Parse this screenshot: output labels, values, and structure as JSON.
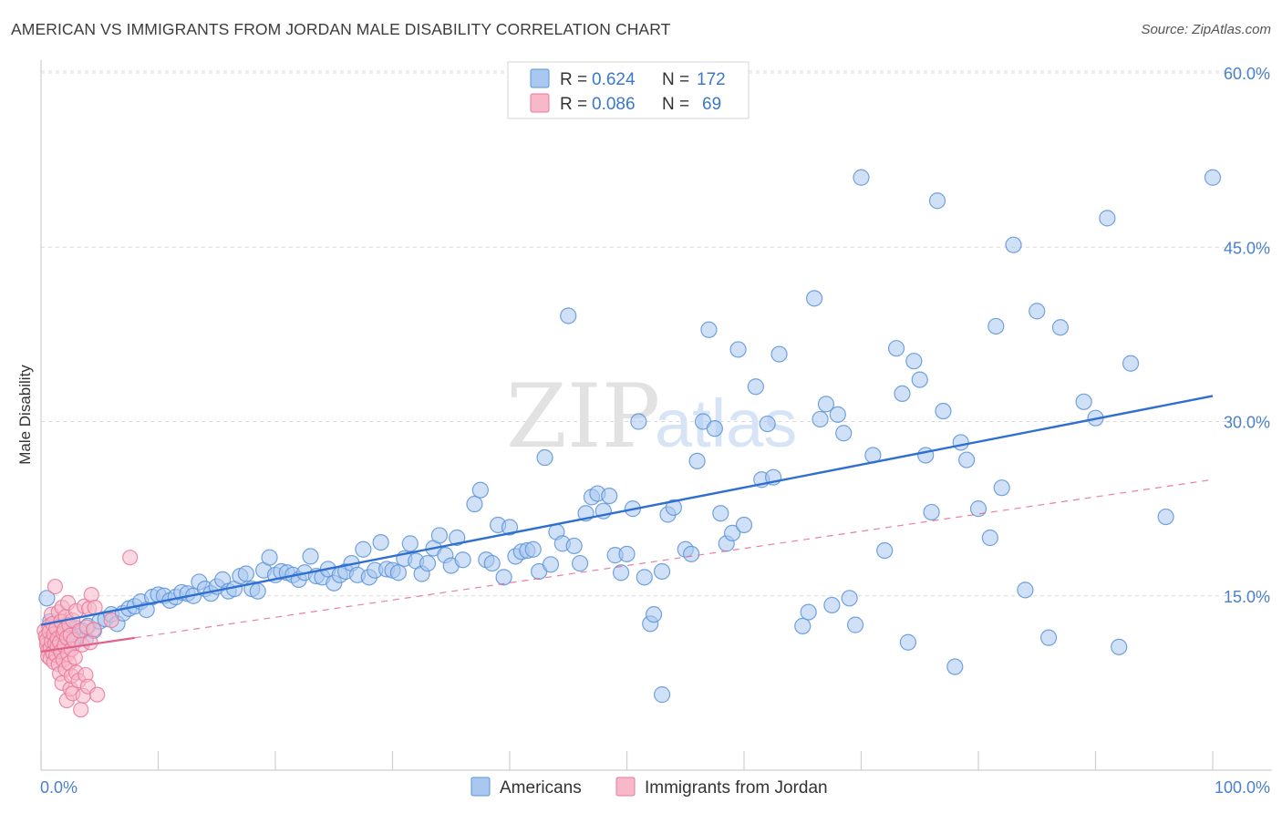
{
  "header": {
    "title": "AMERICAN VS IMMIGRANTS FROM JORDAN MALE DISABILITY CORRELATION CHART",
    "source": "Source: ZipAtlas.com"
  },
  "watermark": {
    "zip": "ZIP",
    "atlas": "atlas"
  },
  "legend": {
    "r_label": "R =",
    "n_label": "N =",
    "entries": [
      {
        "r": "0.624",
        "n": "172",
        "color": "#a9c8f0"
      },
      {
        "r": "0.086",
        "n": "69",
        "color": "#f7b8c9"
      }
    ]
  },
  "bottom_legend": [
    {
      "label": "Americans",
      "color": "#a9c8f0"
    },
    {
      "label": "Immigrants from Jordan",
      "color": "#f7b8c9"
    }
  ],
  "colors": {
    "americans_fill": "#a9c8f0",
    "americans_stroke": "#5b93d8",
    "americans_line": "#2e6fd0",
    "jordan_fill": "#f7b8c9",
    "jordan_stroke": "#e8799a",
    "jordan_line": "#e0628a",
    "grid": "#dcdcdc",
    "tick_text": "#4a80cc"
  },
  "chart_data": {
    "type": "scatter",
    "title": "AMERICAN VS IMMIGRANTS FROM JORDAN MALE DISABILITY CORRELATION CHART",
    "xlabel": "",
    "ylabel": "Male Disability",
    "xlim": [
      0,
      100
    ],
    "ylim": [
      0,
      60
    ],
    "y_ticks": [
      {
        "value": 15,
        "label": "15.0%"
      },
      {
        "value": 30,
        "label": "30.0%"
      },
      {
        "value": 45,
        "label": "45.0%"
      },
      {
        "value": 60,
        "label": "60.0%"
      }
    ],
    "x_ticks": [
      {
        "value": 0,
        "label": "0.0%"
      },
      {
        "value": 100,
        "label": "100.0%"
      }
    ],
    "grid": true,
    "series": [
      {
        "name": "Americans",
        "trend": {
          "x": [
            0,
            100
          ],
          "y": [
            12.5,
            32.2
          ],
          "style": "solid"
        },
        "points": [
          [
            0.5,
            14.8
          ],
          [
            0.8,
            12.8
          ],
          [
            1.0,
            11.5
          ],
          [
            1.2,
            11.0
          ],
          [
            1.5,
            12.0
          ],
          [
            1.8,
            11.7
          ],
          [
            2.0,
            11.2
          ],
          [
            2.2,
            12.5
          ],
          [
            2.5,
            11.8
          ],
          [
            2.8,
            11.0
          ],
          [
            3.0,
            12.2
          ],
          [
            3.2,
            11.5
          ],
          [
            3.5,
            12.0
          ],
          [
            3.8,
            11.3
          ],
          [
            4.0,
            12.4
          ],
          [
            4.5,
            12.0
          ],
          [
            5.0,
            12.8
          ],
          [
            5.5,
            13.0
          ],
          [
            6.0,
            13.4
          ],
          [
            6.5,
            12.6
          ],
          [
            7.0,
            13.5
          ],
          [
            7.5,
            13.9
          ],
          [
            8.0,
            14.1
          ],
          [
            8.5,
            14.5
          ],
          [
            9.0,
            13.8
          ],
          [
            9.5,
            14.9
          ],
          [
            10.0,
            15.1
          ],
          [
            10.5,
            15.0
          ],
          [
            11.0,
            14.6
          ],
          [
            11.5,
            14.9
          ],
          [
            12.0,
            15.3
          ],
          [
            12.5,
            15.2
          ],
          [
            13.0,
            15.0
          ],
          [
            13.5,
            16.2
          ],
          [
            14.0,
            15.6
          ],
          [
            14.5,
            15.2
          ],
          [
            15.0,
            15.8
          ],
          [
            15.5,
            16.4
          ],
          [
            16.0,
            15.4
          ],
          [
            16.5,
            15.6
          ],
          [
            17.0,
            16.7
          ],
          [
            17.5,
            16.9
          ],
          [
            18.0,
            15.6
          ],
          [
            18.5,
            15.4
          ],
          [
            19.0,
            17.2
          ],
          [
            19.5,
            18.3
          ],
          [
            20.0,
            16.8
          ],
          [
            20.5,
            17.1
          ],
          [
            21.0,
            17.0
          ],
          [
            21.5,
            16.8
          ],
          [
            22.0,
            16.4
          ],
          [
            22.5,
            17.0
          ],
          [
            23.0,
            18.4
          ],
          [
            23.5,
            16.7
          ],
          [
            24.0,
            16.6
          ],
          [
            24.5,
            17.3
          ],
          [
            25.0,
            16.1
          ],
          [
            25.5,
            16.8
          ],
          [
            26.0,
            17.1
          ],
          [
            26.5,
            17.8
          ],
          [
            27.0,
            16.8
          ],
          [
            27.5,
            19.0
          ],
          [
            28.0,
            16.6
          ],
          [
            28.5,
            17.2
          ],
          [
            29.0,
            19.6
          ],
          [
            29.5,
            17.3
          ],
          [
            30.0,
            17.2
          ],
          [
            30.5,
            17.0
          ],
          [
            31.0,
            18.2
          ],
          [
            31.5,
            19.5
          ],
          [
            32.0,
            18.0
          ],
          [
            32.5,
            16.9
          ],
          [
            33.0,
            17.8
          ],
          [
            33.5,
            19.1
          ],
          [
            34.0,
            20.2
          ],
          [
            34.5,
            18.5
          ],
          [
            35.0,
            17.6
          ],
          [
            35.5,
            20.0
          ],
          [
            36.0,
            18.1
          ],
          [
            37.0,
            22.9
          ],
          [
            37.5,
            24.1
          ],
          [
            38.0,
            18.1
          ],
          [
            38.5,
            17.8
          ],
          [
            39.0,
            21.1
          ],
          [
            39.5,
            16.6
          ],
          [
            40.0,
            20.9
          ],
          [
            40.5,
            18.4
          ],
          [
            41.0,
            18.8
          ],
          [
            41.5,
            18.9
          ],
          [
            42.0,
            19.0
          ],
          [
            42.5,
            17.1
          ],
          [
            43.0,
            26.9
          ],
          [
            43.5,
            17.7
          ],
          [
            44.0,
            20.5
          ],
          [
            44.5,
            19.5
          ],
          [
            45.0,
            39.1
          ],
          [
            45.5,
            19.3
          ],
          [
            46.0,
            17.8
          ],
          [
            46.5,
            22.1
          ],
          [
            47.0,
            23.5
          ],
          [
            47.5,
            23.8
          ],
          [
            48.0,
            22.3
          ],
          [
            48.5,
            23.6
          ],
          [
            49.0,
            18.5
          ],
          [
            49.5,
            17.0
          ],
          [
            50.0,
            18.6
          ],
          [
            50.5,
            22.5
          ],
          [
            51.0,
            30.0
          ],
          [
            51.5,
            16.6
          ],
          [
            52.0,
            12.6
          ],
          [
            52.3,
            13.4
          ],
          [
            53.0,
            17.1
          ],
          [
            53.5,
            22.0
          ],
          [
            54.0,
            22.6
          ],
          [
            55.0,
            19.0
          ],
          [
            55.5,
            18.6
          ],
          [
            56.0,
            26.6
          ],
          [
            56.5,
            30.0
          ],
          [
            57.0,
            37.9
          ],
          [
            57.5,
            29.4
          ],
          [
            58.0,
            22.1
          ],
          [
            58.5,
            19.5
          ],
          [
            59.0,
            20.4
          ],
          [
            59.5,
            36.2
          ],
          [
            60.0,
            21.1
          ],
          [
            61.0,
            33.0
          ],
          [
            61.5,
            25.0
          ],
          [
            62.0,
            29.8
          ],
          [
            62.5,
            25.2
          ],
          [
            63.0,
            35.8
          ],
          [
            65.0,
            12.4
          ],
          [
            65.5,
            13.6
          ],
          [
            66.0,
            40.6
          ],
          [
            66.5,
            30.2
          ],
          [
            67.0,
            31.5
          ],
          [
            67.5,
            14.2
          ],
          [
            68.0,
            30.6
          ],
          [
            68.5,
            29.0
          ],
          [
            69.0,
            14.8
          ],
          [
            69.5,
            12.5
          ],
          [
            70.0,
            51.0
          ],
          [
            71.0,
            27.1
          ],
          [
            72.0,
            18.9
          ],
          [
            73.0,
            36.3
          ],
          [
            73.5,
            32.4
          ],
          [
            74.0,
            11.0
          ],
          [
            74.5,
            35.2
          ],
          [
            75.0,
            33.6
          ],
          [
            75.5,
            27.1
          ],
          [
            76.0,
            22.2
          ],
          [
            76.5,
            49.0
          ],
          [
            77.0,
            30.9
          ],
          [
            78.0,
            8.9
          ],
          [
            78.5,
            28.2
          ],
          [
            79.0,
            26.7
          ],
          [
            80.0,
            22.5
          ],
          [
            81.0,
            20.0
          ],
          [
            81.5,
            38.2
          ],
          [
            82.0,
            24.3
          ],
          [
            83.0,
            45.2
          ],
          [
            84.0,
            15.5
          ],
          [
            85.0,
            39.5
          ],
          [
            86.0,
            11.4
          ],
          [
            87.0,
            38.1
          ],
          [
            89.0,
            31.7
          ],
          [
            90.0,
            30.3
          ],
          [
            91.0,
            47.5
          ],
          [
            92.0,
            10.6
          ],
          [
            93.0,
            35.0
          ],
          [
            96.0,
            21.8
          ],
          [
            100.0,
            51.0
          ],
          [
            53.0,
            6.5
          ]
        ]
      },
      {
        "name": "Immigrants from Jordan",
        "trend": {
          "x": [
            0,
            100
          ],
          "y": [
            10.2,
            25.0
          ],
          "style": "dashed"
        },
        "points": [
          [
            0.3,
            12.0
          ],
          [
            0.4,
            11.5
          ],
          [
            0.5,
            10.8
          ],
          [
            0.5,
            11.2
          ],
          [
            0.6,
            10.3
          ],
          [
            0.6,
            9.8
          ],
          [
            0.7,
            12.4
          ],
          [
            0.7,
            11.9
          ],
          [
            0.8,
            10.5
          ],
          [
            0.8,
            9.6
          ],
          [
            0.9,
            11.1
          ],
          [
            0.9,
            13.4
          ],
          [
            1.0,
            12.6
          ],
          [
            1.0,
            10.1
          ],
          [
            1.1,
            9.3
          ],
          [
            1.1,
            11.7
          ],
          [
            1.2,
            10.9
          ],
          [
            1.2,
            15.8
          ],
          [
            1.3,
            12.2
          ],
          [
            1.3,
            9.9
          ],
          [
            1.4,
            11.3
          ],
          [
            1.4,
            10.6
          ],
          [
            1.5,
            13.6
          ],
          [
            1.5,
            9.1
          ],
          [
            1.6,
            8.3
          ],
          [
            1.6,
            11.0
          ],
          [
            1.7,
            12.8
          ],
          [
            1.7,
            10.2
          ],
          [
            1.8,
            7.5
          ],
          [
            1.8,
            14.0
          ],
          [
            1.9,
            11.8
          ],
          [
            1.9,
            9.5
          ],
          [
            2.0,
            12.1
          ],
          [
            2.0,
            10.7
          ],
          [
            2.1,
            8.7
          ],
          [
            2.1,
            13.2
          ],
          [
            2.2,
            11.4
          ],
          [
            2.2,
            6.0
          ],
          [
            2.3,
            10.0
          ],
          [
            2.3,
            14.4
          ],
          [
            2.4,
            9.2
          ],
          [
            2.4,
            12.5
          ],
          [
            2.5,
            7.0
          ],
          [
            2.5,
            11.6
          ],
          [
            2.6,
            10.4
          ],
          [
            2.6,
            8.1
          ],
          [
            2.7,
            12.9
          ],
          [
            2.7,
            6.6
          ],
          [
            2.8,
            11.2
          ],
          [
            2.9,
            9.7
          ],
          [
            3.0,
            8.4
          ],
          [
            3.0,
            13.7
          ],
          [
            3.2,
            7.7
          ],
          [
            3.3,
            12.0
          ],
          [
            3.4,
            5.2
          ],
          [
            3.5,
            10.8
          ],
          [
            3.6,
            6.4
          ],
          [
            3.7,
            14.1
          ],
          [
            3.8,
            8.2
          ],
          [
            3.9,
            12.3
          ],
          [
            4.0,
            7.2
          ],
          [
            4.1,
            13.9
          ],
          [
            4.2,
            11.0
          ],
          [
            4.3,
            15.1
          ],
          [
            4.5,
            12.1
          ],
          [
            4.6,
            14.0
          ],
          [
            4.8,
            6.5
          ],
          [
            6.0,
            12.9
          ],
          [
            7.6,
            18.3
          ]
        ]
      }
    ]
  }
}
